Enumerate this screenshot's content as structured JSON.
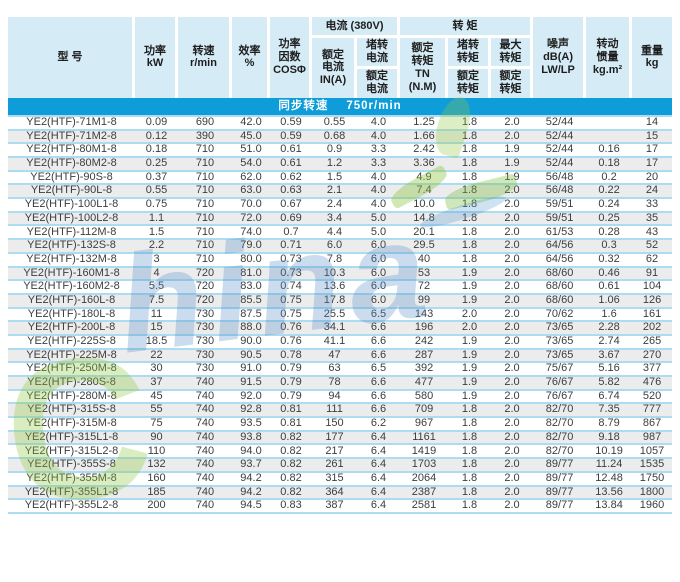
{
  "colors": {
    "header_bg": "#d5ebf5",
    "band_bg": "#0f9dda",
    "band_text": "#ffffff",
    "row_alt_bg": "#ececec",
    "row_line": "#abdcf2",
    "text": "#3d3d3d",
    "watermark_green": "#8dc63f",
    "watermark_blue": "#4e8cc4"
  },
  "table": {
    "header": {
      "model": "型  号",
      "power": "功率\nkW",
      "speed": "转速\nr/min",
      "efficiency": "效率\n%",
      "power_factor": "功率\n因数\nCOSΦ",
      "current_group": "电流 (380V)",
      "rated_current": "额定\n电流\nIN(A)",
      "locked_current_top": "堵转\n电流",
      "locked_current_bottom": "额定\n电流",
      "torque_group": "转    矩",
      "rated_torque": "额定\n转矩\nTN\n(N.M)",
      "locked_torque_top": "堵转\n转矩",
      "locked_torque_bottom": "额定\n转矩",
      "max_torque_top": "最大\n转矩",
      "max_torque_bottom": "额定\n转矩",
      "noise": "噪声\ndB(A)\nLW/LP",
      "inertia": "转动\n惯量\nkg.m²",
      "weight": "重量\nkg"
    },
    "band": {
      "label": "同步转速",
      "value": "750r/min"
    },
    "column_keys": [
      "model",
      "power-kw",
      "speed",
      "efficiency",
      "cos-phi",
      "rated-current",
      "locked-current-ratio",
      "rated-torque",
      "locked-torque-ratio",
      "max-torque-ratio",
      "noise",
      "inertia",
      "weight"
    ],
    "rows": [
      [
        "YE2(HTF)-71M1-8",
        "0.09",
        "690",
        "42.0",
        "0.59",
        "0.55",
        "4.0",
        "1.25",
        "1.8",
        "2.0",
        "52/44",
        "",
        "14"
      ],
      [
        "YE2(HTF)-71M2-8",
        "0.12",
        "390",
        "45.0",
        "0.59",
        "0.68",
        "4.0",
        "1.66",
        "1.8",
        "2.0",
        "52/44",
        "",
        "15"
      ],
      [
        "YE2(HTF)-80M1-8",
        "0.18",
        "710",
        "51.0",
        "0.61",
        "0.9",
        "3.3",
        "2.42",
        "1.8",
        "1.9",
        "52/44",
        "0.16",
        "17"
      ],
      [
        "YE2(HTF)-80M2-8",
        "0.25",
        "710",
        "54.0",
        "0.61",
        "1.2",
        "3.3",
        "3.36",
        "1.8",
        "1.9",
        "52/44",
        "0.18",
        "17"
      ],
      [
        "YE2(HTF)-90S-8",
        "0.37",
        "710",
        "62.0",
        "0.62",
        "1.5",
        "4.0",
        "4.9",
        "1.8",
        "1.9",
        "56/48",
        "0.2",
        "20"
      ],
      [
        "YE2(HTF)-90L-8",
        "0.55",
        "710",
        "63.0",
        "0.63",
        "2.1",
        "4.0",
        "7.4",
        "1.8",
        "2.0",
        "56/48",
        "0.22",
        "24"
      ],
      [
        "YE2(HTF)-100L1-8",
        "0.75",
        "710",
        "70.0",
        "0.67",
        "2.4",
        "4.0",
        "10.0",
        "1.8",
        "2.0",
        "59/51",
        "0.24",
        "33"
      ],
      [
        "YE2(HTF)-100L2-8",
        "1.1",
        "710",
        "72.0",
        "0.69",
        "3.4",
        "5.0",
        "14.8",
        "1.8",
        "2.0",
        "59/51",
        "0.25",
        "35"
      ],
      [
        "YE2(HTF)-112M-8",
        "1.5",
        "710",
        "74.0",
        "0.7",
        "4.4",
        "5.0",
        "20.1",
        "1.8",
        "2.0",
        "61/53",
        "0.28",
        "43"
      ],
      [
        "YE2(HTF)-132S-8",
        "2.2",
        "710",
        "79.0",
        "0.71",
        "6.0",
        "6.0",
        "29.5",
        "1.8",
        "2.0",
        "64/56",
        "0.3",
        "52"
      ],
      [
        "YE2(HTF)-132M-8",
        "3",
        "710",
        "80.0",
        "0.73",
        "7.8",
        "6.0",
        "40",
        "1.8",
        "2.0",
        "64/56",
        "0.32",
        "62"
      ],
      [
        "YE2(HTF)-160M1-8",
        "4",
        "720",
        "81.0",
        "0.73",
        "10.3",
        "6.0",
        "53",
        "1.9",
        "2.0",
        "68/60",
        "0.46",
        "91"
      ],
      [
        "YE2(HTF)-160M2-8",
        "5.5",
        "720",
        "83.0",
        "0.74",
        "13.6",
        "6.0",
        "72",
        "1.9",
        "2.0",
        "68/60",
        "0.61",
        "104"
      ],
      [
        "YE2(HTF)-160L-8",
        "7.5",
        "720",
        "85.5",
        "0.75",
        "17.8",
        "6.0",
        "99",
        "1.9",
        "2.0",
        "68/60",
        "1.06",
        "126"
      ],
      [
        "YE2(HTF)-180L-8",
        "11",
        "730",
        "87.5",
        "0.75",
        "25.5",
        "6.5",
        "143",
        "2.0",
        "2.0",
        "70/62",
        "1.6",
        "161"
      ],
      [
        "YE2(HTF)-200L-8",
        "15",
        "730",
        "88.0",
        "0.76",
        "34.1",
        "6.6",
        "196",
        "2.0",
        "2.0",
        "73/65",
        "2.28",
        "202"
      ],
      [
        "YE2(HTF)-225S-8",
        "18.5",
        "730",
        "90.0",
        "0.76",
        "41.1",
        "6.6",
        "242",
        "1.9",
        "2.0",
        "73/65",
        "2.74",
        "265"
      ],
      [
        "YE2(HTF)-225M-8",
        "22",
        "730",
        "90.5",
        "0.78",
        "47",
        "6.6",
        "287",
        "1.9",
        "2.0",
        "73/65",
        "3.67",
        "270"
      ],
      [
        "YE2(HTF)-250M-8",
        "30",
        "730",
        "91.0",
        "0.79",
        "63",
        "6.5",
        "392",
        "1.9",
        "2.0",
        "75/67",
        "5.16",
        "377"
      ],
      [
        "YE2(HTF)-280S-8",
        "37",
        "740",
        "91.5",
        "0.79",
        "78",
        "6.6",
        "477",
        "1.9",
        "2.0",
        "76/67",
        "5.82",
        "476"
      ],
      [
        "YE2(HTF)-280M-8",
        "45",
        "740",
        "92.0",
        "0.79",
        "94",
        "6.6",
        "580",
        "1.9",
        "2.0",
        "76/67",
        "6.74",
        "520"
      ],
      [
        "YE2(HTF)-315S-8",
        "55",
        "740",
        "92.8",
        "0.81",
        "111",
        "6.6",
        "709",
        "1.8",
        "2.0",
        "82/70",
        "7.35",
        "777"
      ],
      [
        "YE2(HTF)-315M-8",
        "75",
        "740",
        "93.5",
        "0.81",
        "150",
        "6.2",
        "967",
        "1.8",
        "2.0",
        "82/70",
        "8.79",
        "867"
      ],
      [
        "YE2(HTF)-315L1-8",
        "90",
        "740",
        "93.8",
        "0.82",
        "177",
        "6.4",
        "1161",
        "1.8",
        "2.0",
        "82/70",
        "9.18",
        "987"
      ],
      [
        "YE2(HTF)-315L2-8",
        "110",
        "740",
        "94.0",
        "0.82",
        "217",
        "6.4",
        "1419",
        "1.8",
        "2.0",
        "82/70",
        "10.19",
        "1057"
      ],
      [
        "YE2(HTF)-355S-8",
        "132",
        "740",
        "93.7",
        "0.82",
        "261",
        "6.4",
        "1703",
        "1.8",
        "2.0",
        "89/77",
        "11.24",
        "1535"
      ],
      [
        "YE2(HTF)-355M-8",
        "160",
        "740",
        "94.2",
        "0.82",
        "315",
        "6.4",
        "2064",
        "1.8",
        "2.0",
        "89/77",
        "12.48",
        "1750"
      ],
      [
        "YE2(HTF)-355L1-8",
        "185",
        "740",
        "94.2",
        "0.82",
        "364",
        "6.4",
        "2387",
        "1.8",
        "2.0",
        "89/77",
        "13.56",
        "1800"
      ],
      [
        "YE2(HTF)-355L2-8",
        "200",
        "740",
        "94.5",
        "0.83",
        "387",
        "6.4",
        "2581",
        "1.8",
        "2.0",
        "89/77",
        "13.84",
        "1960"
      ]
    ]
  },
  "watermark": {
    "text_c": "C",
    "text_rest": "hina"
  }
}
